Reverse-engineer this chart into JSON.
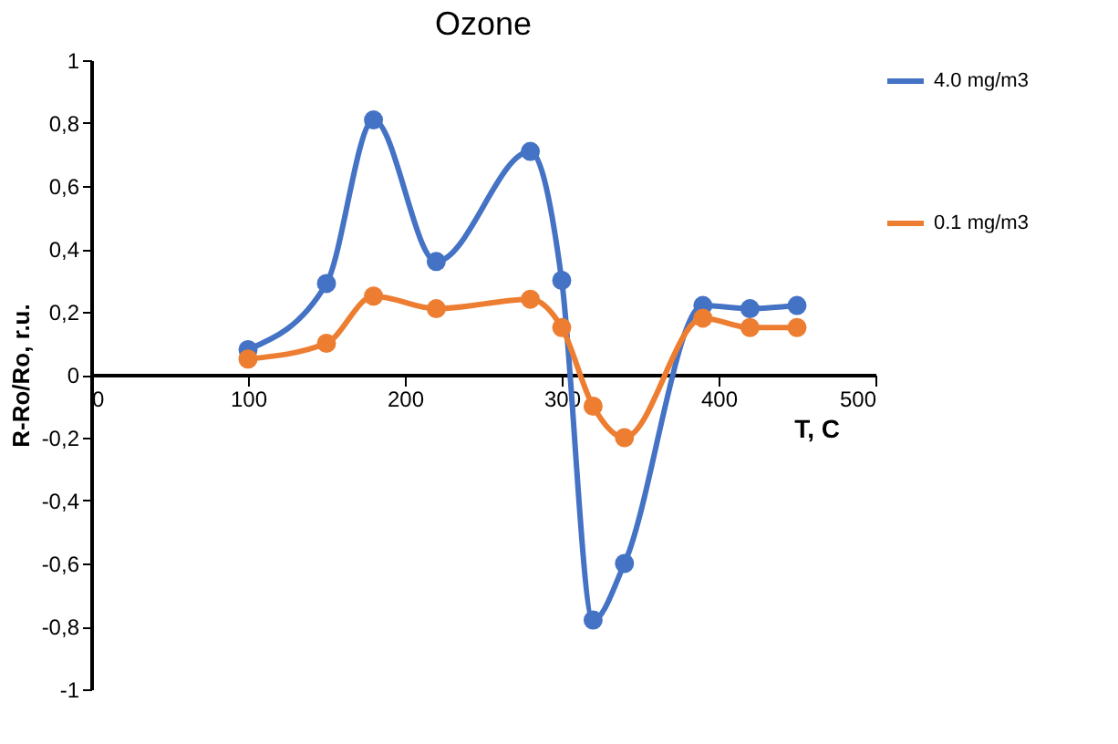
{
  "chart_data": {
    "type": "line",
    "title": "Ozone",
    "xlabel": "T, C",
    "ylabel": "R-Ro/Ro, r.u.",
    "x": [
      100,
      150,
      180,
      220,
      280,
      300,
      320,
      340,
      390,
      420,
      450
    ],
    "series": [
      {
        "name": "4.0 mg/m3",
        "color": "#4472c4",
        "values": [
          0.08,
          0.29,
          0.81,
          0.36,
          0.71,
          0.3,
          -0.78,
          -0.6,
          0.22,
          0.21,
          0.22
        ]
      },
      {
        "name": "0.1 mg/m3",
        "color": "#ed7d31",
        "values": [
          0.05,
          0.1,
          0.25,
          0.21,
          0.24,
          0.15,
          -0.1,
          -0.2,
          0.18,
          0.15,
          0.15
        ]
      }
    ],
    "xlim": [
      0,
      500
    ],
    "xticks": [
      0,
      100,
      200,
      300,
      400,
      500
    ],
    "ylim": [
      -1,
      1
    ],
    "yticks": [
      {
        "value": -1,
        "label": "-1"
      },
      {
        "value": -0.8,
        "label": "-0,8"
      },
      {
        "value": -0.6,
        "label": "-0,6"
      },
      {
        "value": -0.4,
        "label": "-0,4"
      },
      {
        "value": -0.2,
        "label": "-0,2"
      },
      {
        "value": 0,
        "label": "0"
      },
      {
        "value": 0.2,
        "label": "0,2"
      },
      {
        "value": 0.4,
        "label": "0,4"
      },
      {
        "value": 0.6,
        "label": "0,6"
      },
      {
        "value": 0.8,
        "label": "0,8"
      },
      {
        "value": 1,
        "label": "1"
      }
    ],
    "grid": false,
    "legend": "top right",
    "marker": "circle",
    "line_style": "solid"
  }
}
